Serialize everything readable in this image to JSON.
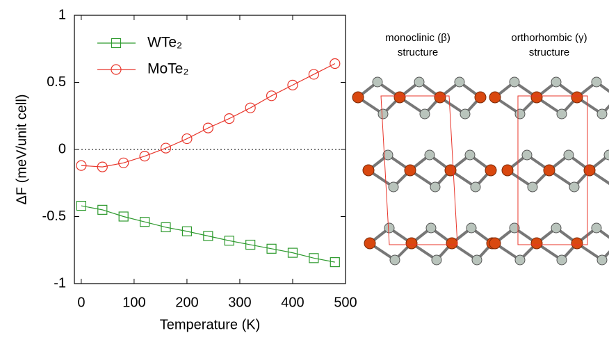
{
  "chart_data": {
    "type": "line",
    "xlabel": "Temperature (K)",
    "ylabel": "ΔF (meV/unit cell)",
    "x": [
      0,
      40,
      80,
      120,
      160,
      200,
      240,
      280,
      320,
      360,
      400,
      440,
      480
    ],
    "series": [
      {
        "name": "WTe₂",
        "color": "#2e9a2e",
        "marker": "square",
        "values": [
          -0.42,
          -0.45,
          -0.5,
          -0.54,
          -0.58,
          -0.61,
          -0.645,
          -0.68,
          -0.71,
          -0.74,
          -0.77,
          -0.81,
          -0.84
        ]
      },
      {
        "name": "MoTe₂",
        "color": "#e8352a",
        "marker": "circle",
        "values": [
          -0.12,
          -0.13,
          -0.1,
          -0.05,
          0.01,
          0.08,
          0.16,
          0.23,
          0.31,
          0.4,
          0.48,
          0.56,
          0.64
        ]
      }
    ],
    "xlim": [
      -13,
      500
    ],
    "xticks": [
      0,
      100,
      200,
      300,
      400,
      500
    ],
    "ylim": [
      -1,
      1
    ],
    "yticks": [
      -1,
      -0.5,
      0,
      0.5,
      1
    ],
    "hline": 0,
    "legend": "upper left",
    "annotations": [
      "monoclinic (β)",
      "structure",
      "orthorhombic (γ)",
      "structure"
    ]
  }
}
